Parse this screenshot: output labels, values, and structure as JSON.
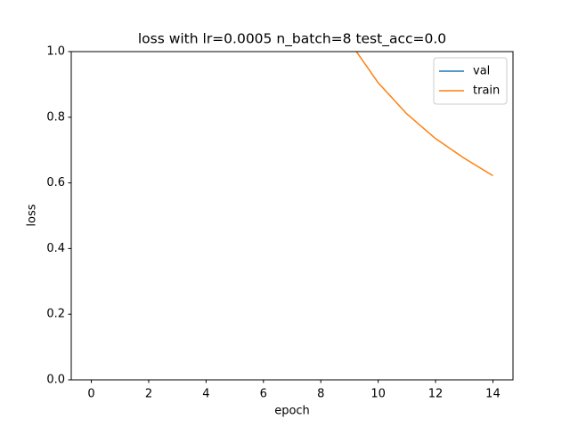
{
  "chart_data": {
    "type": "line",
    "title": "loss with lr=0.0005 n_batch=8 test_acc=0.0",
    "x_label": "epoch",
    "y_label": "loss",
    "x": [
      9,
      10,
      11,
      12,
      13,
      14
    ],
    "series": [
      {
        "name": "val",
        "color": "#1f77b4",
        "values": [
          null,
          null,
          null,
          null,
          null,
          null
        ]
      },
      {
        "name": "train",
        "color": "#ff7f0e",
        "values": [
          1.03,
          0.905,
          0.81,
          0.735,
          0.675,
          0.622
        ]
      }
    ],
    "xlim": [
      -0.7,
      14.7
    ],
    "ylim": [
      0,
      1.0
    ],
    "xticks": [
      0,
      2,
      4,
      6,
      8,
      10,
      12,
      14
    ],
    "yticks": [
      {
        "value": 0,
        "label": "0.0"
      },
      0.2,
      0.4,
      0.6,
      0.8,
      {
        "value": 1.0,
        "label": "1.0"
      }
    ],
    "legend": "upper right"
  }
}
